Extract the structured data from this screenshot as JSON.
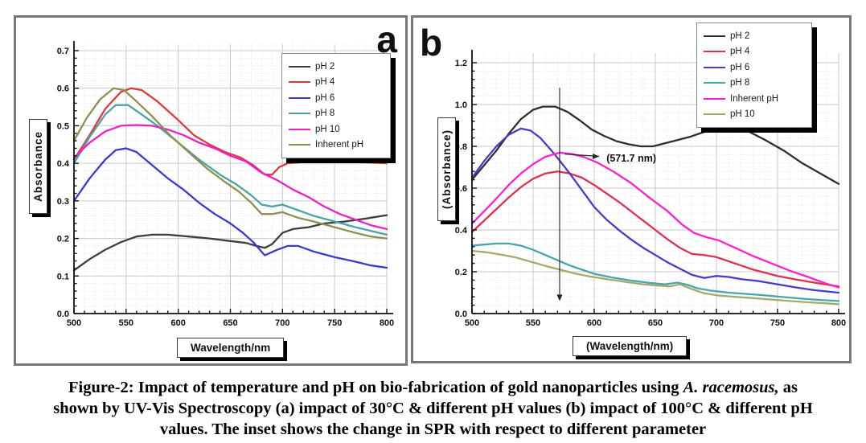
{
  "figure": {
    "caption": {
      "line1_prefix": "Figure-2: Impact of temperature and pH on bio-fabrication of gold nanoparticles using ",
      "line1_italic": "A. racemosus,",
      "line1_suffix": " as",
      "line2": "shown by UV-Vis Spectroscopy (a) impact of 30°C & different pH values (b) impact of 100°C & different pH",
      "line3": "values. The inset shows the change in SPR with respect to different parameter"
    }
  },
  "chart_data": [
    {
      "id": "chart-a",
      "type": "line",
      "panel_letter": "a",
      "xlabel": "Wavelength/nm",
      "ylabel": "Absorbance",
      "xlim": [
        500,
        800
      ],
      "ylim": [
        0.0,
        0.7
      ],
      "grid": true,
      "legend_position": "upper right",
      "x_major_ticks": [
        500,
        550,
        600,
        650,
        700,
        750,
        800
      ],
      "x_tick_labels": [
        "500",
        "550",
        "600",
        "650",
        "700",
        "750",
        "800"
      ],
      "x_minor_step": 10,
      "y_major_ticks": [
        0.0,
        0.1,
        0.2,
        0.3,
        0.4,
        0.5,
        0.6,
        0.7
      ],
      "y_tick_labels": [
        "0.0",
        "0.1",
        "0.2",
        "0.3",
        "0.4",
        "0.5",
        "0.6",
        "0.7"
      ],
      "y_minor_step": 0.02,
      "series": [
        {
          "name": "pH 2",
          "color": "#3d3d3d",
          "x": [
            500,
            515,
            530,
            545,
            560,
            575,
            590,
            610,
            630,
            650,
            665,
            675,
            683,
            690,
            700,
            710,
            725,
            740,
            760,
            780,
            800
          ],
          "y": [
            0.115,
            0.145,
            0.17,
            0.19,
            0.205,
            0.21,
            0.21,
            0.205,
            0.2,
            0.193,
            0.188,
            0.18,
            0.175,
            0.185,
            0.215,
            0.225,
            0.23,
            0.24,
            0.245,
            0.253,
            0.262
          ]
        },
        {
          "name": "pH 4",
          "color": "#dd3a3a",
          "x": [
            500,
            515,
            530,
            545,
            555,
            565,
            580,
            600,
            615,
            630,
            645,
            660,
            672,
            683,
            690,
            697,
            705,
            730,
            760,
            800
          ],
          "y": [
            0.41,
            0.475,
            0.545,
            0.59,
            0.6,
            0.595,
            0.565,
            0.515,
            0.475,
            0.45,
            0.43,
            0.415,
            0.395,
            0.37,
            0.37,
            0.39,
            0.4,
            0.405,
            0.405,
            0.4
          ]
        },
        {
          "name": "pH 6",
          "color": "#3a3ad0",
          "x": [
            500,
            515,
            530,
            540,
            550,
            560,
            575,
            590,
            605,
            620,
            635,
            650,
            662,
            672,
            683,
            695,
            705,
            715,
            730,
            750,
            770,
            785,
            800
          ],
          "y": [
            0.3,
            0.36,
            0.41,
            0.435,
            0.44,
            0.43,
            0.395,
            0.36,
            0.33,
            0.295,
            0.265,
            0.24,
            0.215,
            0.19,
            0.155,
            0.17,
            0.18,
            0.18,
            0.165,
            0.15,
            0.138,
            0.128,
            0.122
          ]
        },
        {
          "name": "pH 8",
          "color": "#4aa4a4",
          "x": [
            500,
            515,
            530,
            540,
            552,
            565,
            580,
            600,
            620,
            640,
            655,
            670,
            680,
            690,
            700,
            715,
            730,
            750,
            770,
            785,
            800
          ],
          "y": [
            0.4,
            0.47,
            0.53,
            0.555,
            0.555,
            0.53,
            0.5,
            0.455,
            0.41,
            0.37,
            0.345,
            0.315,
            0.29,
            0.285,
            0.29,
            0.275,
            0.26,
            0.245,
            0.23,
            0.22,
            0.21
          ]
        },
        {
          "name": "pH 10",
          "color": "#ec1fc8",
          "x": [
            500,
            515,
            530,
            545,
            560,
            575,
            590,
            605,
            620,
            635,
            650,
            665,
            680,
            695,
            710,
            725,
            740,
            755,
            770,
            785,
            800
          ],
          "y": [
            0.415,
            0.455,
            0.485,
            0.5,
            0.502,
            0.5,
            0.49,
            0.475,
            0.455,
            0.44,
            0.42,
            0.405,
            0.375,
            0.355,
            0.33,
            0.31,
            0.285,
            0.265,
            0.25,
            0.235,
            0.225
          ]
        },
        {
          "name": "Inherent pH",
          "color": "#8d9053",
          "x": [
            500,
            512,
            525,
            538,
            548,
            560,
            575,
            592,
            610,
            628,
            645,
            658,
            670,
            680,
            690,
            700,
            715,
            730,
            750,
            770,
            785,
            800
          ],
          "y": [
            0.46,
            0.52,
            0.57,
            0.6,
            0.595,
            0.565,
            0.525,
            0.475,
            0.43,
            0.385,
            0.35,
            0.325,
            0.295,
            0.265,
            0.265,
            0.27,
            0.255,
            0.245,
            0.23,
            0.215,
            0.205,
            0.2
          ]
        }
      ]
    },
    {
      "id": "chart-b",
      "type": "line",
      "panel_letter": "b",
      "xlabel": "(Wavelength/nm)",
      "ylabel": "(Absorbance)",
      "xlim": [
        500,
        800
      ],
      "ylim": [
        0.0,
        1.2
      ],
      "grid": true,
      "legend_position": "upper right",
      "x_major_ticks": [
        500,
        550,
        600,
        650,
        700,
        750,
        800
      ],
      "x_tick_labels": [
        "500",
        "550",
        "600",
        "650",
        "700",
        "750",
        "800"
      ],
      "x_minor_step": 10,
      "y_major_ticks": [
        0.0,
        0.2,
        0.4,
        0.6,
        0.8,
        1.0,
        1.2
      ],
      "y_tick_labels": [
        "0.0",
        "0.2",
        "0.4",
        "0.6",
        "0.8",
        "1.0",
        "1.2"
      ],
      "y_minor_step": 0.04,
      "annotation": {
        "text": "(571.7 nm)",
        "vline_x": 571.7,
        "vline_top": 1.08,
        "vline_bottom": 0.06,
        "arrow_from_x": 576,
        "arrow_from_y": 0.763,
        "arrow_to_x": 604,
        "arrow_to_y": 0.752,
        "label_x": 610,
        "label_y": 0.742
      },
      "series": [
        {
          "name": "pH 2",
          "color": "#2e2e2e",
          "x": [
            500,
            510,
            520,
            530,
            540,
            550,
            558,
            568,
            578,
            588,
            598,
            608,
            618,
            628,
            638,
            648,
            658,
            668,
            678,
            688,
            698,
            706,
            715,
            725,
            740,
            755,
            770,
            785,
            800
          ],
          "y": [
            0.64,
            0.71,
            0.78,
            0.86,
            0.93,
            0.975,
            0.99,
            0.99,
            0.965,
            0.925,
            0.88,
            0.85,
            0.825,
            0.81,
            0.8,
            0.8,
            0.815,
            0.83,
            0.845,
            0.865,
            0.885,
            0.9,
            0.895,
            0.875,
            0.83,
            0.78,
            0.72,
            0.67,
            0.62
          ]
        },
        {
          "name": "pH 4",
          "color": "#e03050",
          "x": [
            500,
            510,
            520,
            530,
            540,
            550,
            560,
            570,
            580,
            590,
            600,
            610,
            620,
            630,
            640,
            650,
            660,
            670,
            680,
            690,
            700,
            710,
            720,
            730,
            740,
            750,
            765,
            780,
            800
          ],
          "y": [
            0.39,
            0.445,
            0.5,
            0.555,
            0.605,
            0.645,
            0.67,
            0.68,
            0.67,
            0.65,
            0.615,
            0.575,
            0.535,
            0.49,
            0.445,
            0.4,
            0.355,
            0.315,
            0.285,
            0.28,
            0.27,
            0.25,
            0.23,
            0.21,
            0.195,
            0.18,
            0.163,
            0.148,
            0.13
          ]
        },
        {
          "name": "pH 6",
          "color": "#473bc9",
          "x": [
            500,
            510,
            520,
            530,
            540,
            548,
            556,
            565,
            572,
            580,
            590,
            600,
            610,
            620,
            630,
            640,
            650,
            660,
            670,
            680,
            690,
            700,
            710,
            720,
            735,
            750,
            765,
            780,
            800
          ],
          "y": [
            0.65,
            0.73,
            0.8,
            0.855,
            0.885,
            0.875,
            0.84,
            0.78,
            0.73,
            0.67,
            0.59,
            0.51,
            0.45,
            0.4,
            0.355,
            0.315,
            0.28,
            0.245,
            0.215,
            0.185,
            0.17,
            0.18,
            0.175,
            0.165,
            0.155,
            0.14,
            0.125,
            0.112,
            0.1
          ]
        },
        {
          "name": "pH 8",
          "color": "#46a6ae",
          "x": [
            500,
            510,
            520,
            530,
            540,
            550,
            560,
            570,
            580,
            590,
            600,
            615,
            630,
            645,
            658,
            668,
            676,
            685,
            695,
            710,
            725,
            740,
            755,
            770,
            785,
            800
          ],
          "y": [
            0.325,
            0.33,
            0.335,
            0.335,
            0.325,
            0.305,
            0.28,
            0.255,
            0.23,
            0.21,
            0.19,
            0.172,
            0.158,
            0.147,
            0.14,
            0.148,
            0.138,
            0.12,
            0.11,
            0.1,
            0.094,
            0.087,
            0.079,
            0.071,
            0.065,
            0.06
          ]
        },
        {
          "name": "Inherent pH",
          "color": "#fb22cd",
          "x": [
            500,
            510,
            520,
            530,
            540,
            550,
            560,
            572,
            582,
            592,
            602,
            615,
            630,
            645,
            660,
            672,
            682,
            692,
            702,
            715,
            730,
            745,
            760,
            775,
            790,
            800
          ],
          "y": [
            0.43,
            0.49,
            0.55,
            0.615,
            0.67,
            0.715,
            0.75,
            0.77,
            0.763,
            0.748,
            0.724,
            0.682,
            0.625,
            0.555,
            0.49,
            0.425,
            0.385,
            0.365,
            0.35,
            0.315,
            0.275,
            0.24,
            0.205,
            0.175,
            0.143,
            0.125
          ]
        },
        {
          "name": "pH 10",
          "color": "#a7a96c",
          "x": [
            500,
            512,
            524,
            536,
            548,
            560,
            572,
            584,
            596,
            610,
            625,
            640,
            652,
            662,
            670,
            680,
            690,
            702,
            715,
            730,
            745,
            760,
            775,
            790,
            800
          ],
          "y": [
            0.3,
            0.293,
            0.282,
            0.268,
            0.248,
            0.228,
            0.21,
            0.192,
            0.178,
            0.165,
            0.152,
            0.14,
            0.134,
            0.13,
            0.14,
            0.117,
            0.097,
            0.086,
            0.08,
            0.074,
            0.067,
            0.06,
            0.054,
            0.049,
            0.045
          ]
        }
      ]
    }
  ]
}
